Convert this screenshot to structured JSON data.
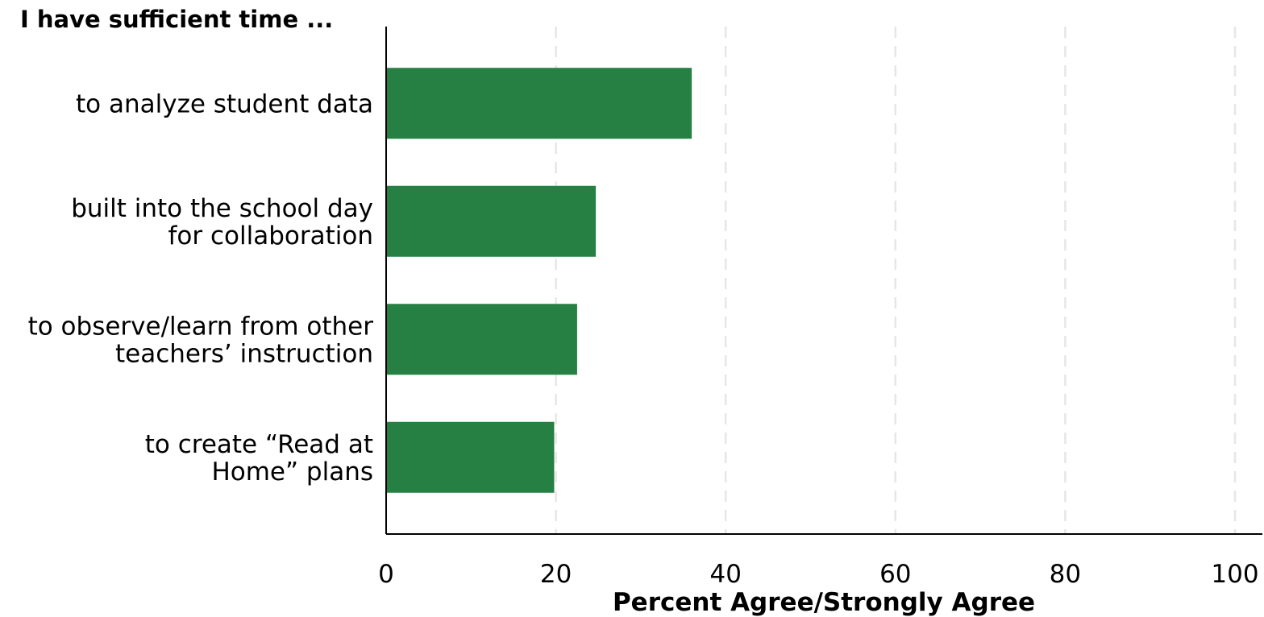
{
  "chart_data": {
    "type": "bar",
    "orientation": "horizontal",
    "title": "I have sufficient time ...",
    "xlabel": "Percent Agree/Strongly Agree",
    "ylabel": "",
    "categories": [
      [
        "to analyze student data"
      ],
      [
        "built into the school day",
        "for collaboration"
      ],
      [
        "to observe/learn from other",
        "teachers’ instruction"
      ],
      [
        "to create “Read at",
        "Home” plans"
      ]
    ],
    "values": [
      36,
      24.7,
      22.5,
      19.8
    ],
    "xlim": [
      0,
      100
    ],
    "xticks": [
      "0",
      "20",
      "40",
      "60",
      "80",
      "100"
    ],
    "grid": "vertical-dashed",
    "bar_color": "#267f43",
    "grid_color": "#e6e6e6",
    "axis_color": "#000000"
  }
}
